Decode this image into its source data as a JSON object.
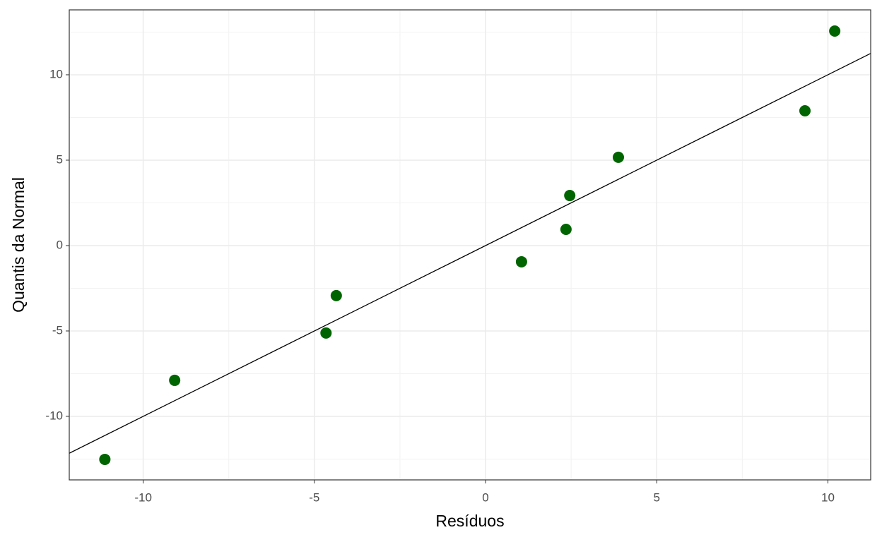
{
  "chart_data": {
    "type": "scatter",
    "x_label": "Resíduos",
    "y_label": "Quantis da Normal",
    "series": [
      {
        "color": "#006400",
        "x": [
          -11.12,
          -9.08,
          -4.66,
          -4.36,
          1.05,
          2.35,
          2.46,
          3.88,
          9.33,
          10.2
        ],
        "values": [
          -12.52,
          -7.89,
          -5.12,
          -2.93,
          -0.95,
          0.95,
          2.93,
          5.17,
          7.89,
          12.56
        ]
      }
    ],
    "reference_line": {
      "intercept": 0,
      "slope": 1,
      "color": "#000000"
    },
    "xlim": [
      -12.16,
      11.25
    ],
    "ylim": [
      -13.72,
      13.8
    ],
    "xticks": [
      -10,
      -5,
      0,
      5,
      10
    ],
    "yticks": [
      -10,
      -5,
      0,
      5,
      10
    ],
    "grid": true
  }
}
